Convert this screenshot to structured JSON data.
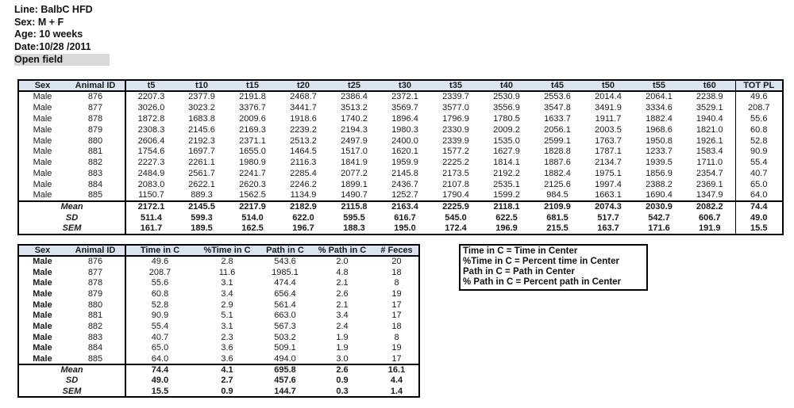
{
  "meta": {
    "line_label": "Line: BalbC HFD",
    "sex_label": "Sex: M + F",
    "age_label": "Age: 10 weeks",
    "date_label": "Date:10/28 /2011",
    "section_label": "Open field"
  },
  "colors": {
    "header_bg": "#dbe5f1",
    "highlight_bg": "#d9d9d9",
    "border": "#000000",
    "text": "#1a1a1a"
  },
  "path_table": {
    "headers": [
      "Sex",
      "Animal ID",
      "t5",
      "t10",
      "t15",
      "t20",
      "t25",
      "t30",
      "t35",
      "t40",
      "t45",
      "t50",
      "t55",
      "t60",
      "TOT PL"
    ],
    "rows": [
      [
        "Male",
        "876",
        "2207.3",
        "2377.9",
        "2191.8",
        "2468.7",
        "2386.4",
        "2372.1",
        "2339.7",
        "2530.9",
        "2553.6",
        "2014.4",
        "2064.1",
        "2238.9",
        "49.6"
      ],
      [
        "Male",
        "877",
        "3026.0",
        "3023.2",
        "3376.7",
        "3441.7",
        "3513.2",
        "3569.7",
        "3577.0",
        "3556.9",
        "3547.8",
        "3491.9",
        "3334.6",
        "3529.1",
        "208.7"
      ],
      [
        "Male",
        "878",
        "1872.8",
        "1683.8",
        "2009.6",
        "1918.6",
        "1740.2",
        "1896.4",
        "1796.9",
        "1780.5",
        "1633.7",
        "1911.7",
        "1882.4",
        "1940.4",
        "55.6"
      ],
      [
        "Male",
        "879",
        "2308.3",
        "2145.6",
        "2169.3",
        "2239.2",
        "2194.3",
        "1980.3",
        "2330.9",
        "2009.2",
        "2056.1",
        "2003.5",
        "1968.6",
        "1821.0",
        "60.8"
      ],
      [
        "Male",
        "880",
        "2606.4",
        "2192.3",
        "2371.1",
        "2513.2",
        "2497.9",
        "2400.0",
        "2339.9",
        "1535.0",
        "2599.1",
        "1763.7",
        "1950.8",
        "1926.1",
        "52.8"
      ],
      [
        "Male",
        "881",
        "1754.6",
        "1697.7",
        "1655.0",
        "1464.5",
        "1517.0",
        "1620.1",
        "1577.2",
        "1627.9",
        "1828.8",
        "1787.1",
        "1233.7",
        "1583.4",
        "90.9"
      ],
      [
        "Male",
        "882",
        "2227.3",
        "2261.1",
        "1980.9",
        "2116.3",
        "1841.9",
        "1959.9",
        "2225.2",
        "1814.1",
        "1887.6",
        "2134.7",
        "1939.5",
        "1711.0",
        "55.4"
      ],
      [
        "Male",
        "883",
        "2484.9",
        "2561.7",
        "2241.7",
        "2285.4",
        "2077.2",
        "2145.8",
        "2173.5",
        "2192.2",
        "1882.4",
        "1975.1",
        "1856.9",
        "2354.7",
        "40.7"
      ],
      [
        "Male",
        "884",
        "2083.0",
        "2622.1",
        "2620.3",
        "2246.2",
        "1899.1",
        "2436.7",
        "2107.8",
        "2535.1",
        "2125.6",
        "1997.4",
        "2388.2",
        "2369.1",
        "65.0"
      ],
      [
        "Male",
        "885",
        "1150.7",
        "889.3",
        "1562.5",
        "1134.9",
        "1490.7",
        "1252.7",
        "1790.4",
        "1599.2",
        "984.5",
        "1663.1",
        "1690.4",
        "1347.9",
        "64.0"
      ]
    ],
    "stats": [
      {
        "label": "Mean",
        "values": [
          "2172.1",
          "2145.5",
          "2217.9",
          "2182.9",
          "2115.8",
          "2163.4",
          "2225.9",
          "2118.1",
          "2109.9",
          "2074.3",
          "2030.9",
          "2082.2",
          "74.4"
        ]
      },
      {
        "label": "SD",
        "values": [
          "511.4",
          "599.3",
          "514.0",
          "622.0",
          "595.5",
          "616.7",
          "545.0",
          "622.5",
          "681.5",
          "517.7",
          "542.7",
          "606.7",
          "49.0"
        ]
      },
      {
        "label": "SEM",
        "values": [
          "161.7",
          "189.5",
          "162.5",
          "196.7",
          "188.3",
          "195.0",
          "172.4",
          "196.9",
          "215.5",
          "163.7",
          "171.6",
          "191.9",
          "15.5"
        ]
      }
    ]
  },
  "center_table": {
    "headers": [
      "Sex",
      "Animal ID",
      "Time in C",
      "%Time in C",
      "Path in C",
      "% Path in C",
      "# Feces"
    ],
    "rows": [
      [
        "Male",
        "876",
        "49.6",
        "2.8",
        "543.6",
        "2.0",
        "20"
      ],
      [
        "Male",
        "877",
        "208.7",
        "11.6",
        "1985.1",
        "4.8",
        "18"
      ],
      [
        "Male",
        "878",
        "55.6",
        "3.1",
        "474.4",
        "2.1",
        "8"
      ],
      [
        "Male",
        "879",
        "60.8",
        "3.4",
        "656.4",
        "2.6",
        "19"
      ],
      [
        "Male",
        "880",
        "52.8",
        "2.9",
        "561.4",
        "2.1",
        "17"
      ],
      [
        "Male",
        "881",
        "90.9",
        "5.1",
        "663.0",
        "3.4",
        "17"
      ],
      [
        "Male",
        "882",
        "55.4",
        "3.1",
        "567.3",
        "2.4",
        "18"
      ],
      [
        "Male",
        "883",
        "40.7",
        "2.3",
        "503.2",
        "1.9",
        "8"
      ],
      [
        "Male",
        "884",
        "65.0",
        "3.6",
        "509.1",
        "1.9",
        "19"
      ],
      [
        "Male",
        "885",
        "64.0",
        "3.6",
        "494.0",
        "3.0",
        "17"
      ]
    ],
    "stats": [
      {
        "label": "Mean",
        "values": [
          "74.4",
          "4.1",
          "695.8",
          "2.6",
          "16.1"
        ]
      },
      {
        "label": "SD",
        "values": [
          "49.0",
          "2.7",
          "457.6",
          "0.9",
          "4.4"
        ]
      },
      {
        "label": "SEM",
        "values": [
          "15.5",
          "0.9",
          "144.7",
          "0.3",
          "1.4"
        ]
      }
    ]
  },
  "legend": {
    "lines": [
      "Time in C = Time in Center",
      "%Time in C = Percent time in Center",
      "Path in C = Path in Center",
      "% Path in C = Percent path in Center"
    ]
  }
}
